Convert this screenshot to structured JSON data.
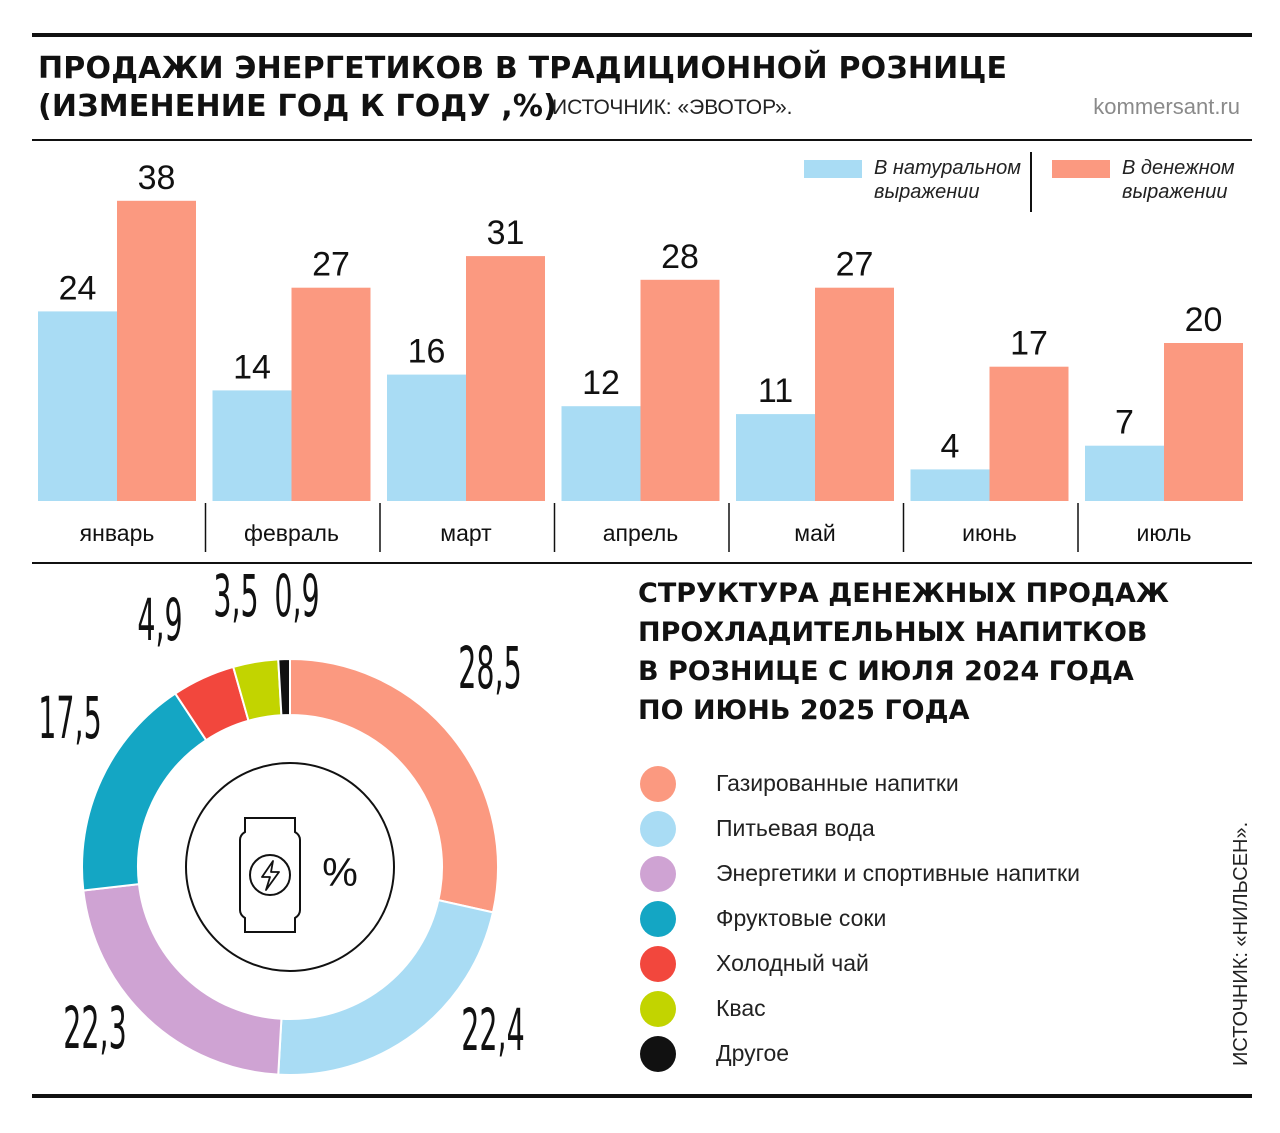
{
  "header": {
    "title_line1": "ПРОДАЖИ ЭНЕРГЕТИКОВ В ТРАДИЦИОННОЙ РОЗНИЦЕ",
    "title_line2": "(ИЗМЕНЕНИЕ ГОД К ГОДУ ,%)",
    "source": "ИСТОЧНИК: «ЭВОТОР».",
    "site": "kommersant.ru"
  },
  "chart_data": [
    {
      "type": "bar",
      "categories": [
        "январь",
        "февраль",
        "март",
        "апрель",
        "май",
        "июнь",
        "июль"
      ],
      "series": [
        {
          "name": "В натуральном выражении",
          "color": "#a9dcf4",
          "values": [
            24,
            14,
            16,
            12,
            11,
            4,
            7
          ]
        },
        {
          "name": "В денежном выражении",
          "color": "#fb9980",
          "values": [
            38,
            27,
            31,
            28,
            27,
            17,
            20
          ]
        }
      ],
      "legend": {
        "placement": "top-right",
        "items": [
          {
            "line1": "В натуральном",
            "line2": "выражении",
            "color": "#a9dcf4"
          },
          {
            "line1": "В денежном",
            "line2": "выражении",
            "color": "#fb9980"
          }
        ]
      },
      "ylim": [
        0,
        40
      ],
      "grid": false,
      "axes_visible": false
    },
    {
      "type": "pie",
      "variant": "donut",
      "title_lines": [
        "СТРУКТУРА ДЕНЕЖНЫХ ПРОДАЖ",
        "ПРОХЛАДИТЕЛЬНЫХ НАПИТКОВ",
        "В РОЗНИЦЕ С ИЮЛЯ 2024 ГОДА",
        "ПО ИЮНЬ 2025 ГОДА"
      ],
      "center_label": "%",
      "center_icon": "energy-drink-can-icon",
      "slices": [
        {
          "label": "Газированные напитки",
          "value": 28.5,
          "value_text": "28,5",
          "color": "#fb9980"
        },
        {
          "label": "Питьевая вода",
          "value": 22.4,
          "value_text": "22,4",
          "color": "#a9dcf4"
        },
        {
          "label": "Энергетики и спортивные напитки",
          "value": 22.3,
          "value_text": "22,3",
          "color": "#cfa3d3"
        },
        {
          "label": "Фруктовые соки",
          "value": 17.5,
          "value_text": "17,5",
          "color": "#14a6c4"
        },
        {
          "label": "Холодный чай",
          "value": 4.9,
          "value_text": "4,9",
          "color": "#f2473d"
        },
        {
          "label": "Квас",
          "value": 3.5,
          "value_text": "3,5",
          "color": "#c2d400"
        },
        {
          "label": "Другое",
          "value": 0.9,
          "value_text": "0,9",
          "color": "#111111"
        }
      ],
      "source": "ИСТОЧНИК: «НИЛЬСЕН»."
    }
  ]
}
